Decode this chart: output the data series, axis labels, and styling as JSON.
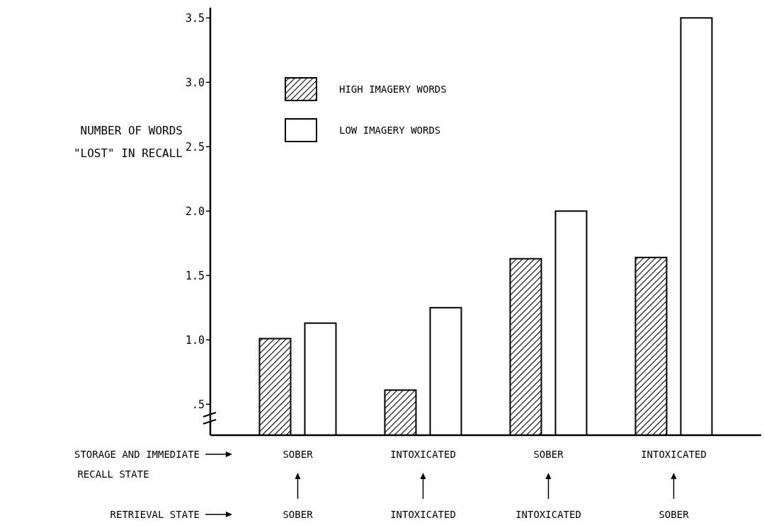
{
  "chart_data": {
    "type": "bar",
    "ylabel": "NUMBER OF WORDS\n\"LOST\" IN RECALL",
    "categories": [
      "SOBER",
      "INTOXICATED",
      "SOBER",
      "INTOXICATED"
    ],
    "series": [
      {
        "name": "HIGH IMAGERY WORDS",
        "color": "#000000",
        "values": [
          1.01,
          0.61,
          1.63,
          1.64
        ]
      },
      {
        "name": "LOW IMAGERY WORDS",
        "color": "#ffffff",
        "values": [
          1.13,
          1.25,
          2.0,
          3.5
        ]
      }
    ],
    "ylim": [
      0.26,
      3.58
    ],
    "yticks": [
      {
        "value": 0.5,
        "label": ".5"
      },
      {
        "value": 1,
        "label": "1.0"
      },
      {
        "value": 1.5,
        "label": "1.5"
      },
      {
        "value": 2,
        "label": "2.0"
      },
      {
        "value": 2.5,
        "label": "2.5"
      },
      {
        "value": 3,
        "label": "3.0"
      },
      {
        "value": 3.5,
        "label": "3.5"
      }
    ],
    "legend": "top left",
    "annotations": [
      "STORAGE AND IMMEDIATE",
      "RECALL STATE",
      "RETRIEVAL STATE",
      "SOBER",
      "INTOXICATED",
      "INTOXICATED",
      "SOBER"
    ]
  }
}
